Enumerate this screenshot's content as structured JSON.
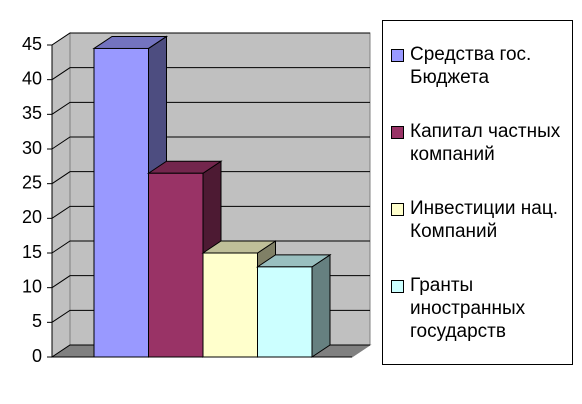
{
  "chart_data": {
    "type": "bar3d",
    "categories": [
      null
    ],
    "series": [
      {
        "name": "Средства гос. Бюджета",
        "color": "#9999ff",
        "values": [
          44.5
        ]
      },
      {
        "name": "Капитал частных компаний",
        "color": "#993366",
        "values": [
          26.5
        ]
      },
      {
        "name": "Инвестиции нац. Компаний",
        "color": "#ffffcc",
        "values": [
          15
        ]
      },
      {
        "name": "Гранты иностранных государств",
        "color": "#ccffff",
        "values": [
          13
        ]
      }
    ],
    "ylim": [
      0,
      45
    ],
    "yticks": [
      0,
      5,
      10,
      15,
      20,
      25,
      30,
      35,
      40,
      45
    ],
    "grid": true,
    "legend": "right"
  }
}
